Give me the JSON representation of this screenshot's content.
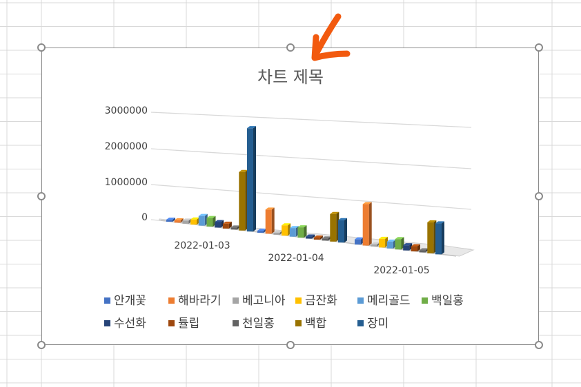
{
  "colors": {
    "gridline": "#d9d9d9",
    "frame": "#8c8c8c",
    "handle": "#8a8a8a",
    "annotation_arrow": "#f25a0f",
    "axis_text": "#404040"
  },
  "annotation": {
    "icon": "arrow-icon",
    "color": "#f25a0f"
  },
  "chart_data": {
    "type": "bar",
    "title": "차트 제목",
    "style": "3d-column",
    "categories": [
      "2022-01-03",
      "2022-01-04",
      "2022-01-05"
    ],
    "ylim": [
      0,
      3000000
    ],
    "yticks": [
      "3000000",
      "2000000",
      "1000000",
      "0"
    ],
    "grid": true,
    "legend_position": "bottom",
    "series": [
      {
        "name": "안개꽃",
        "color": "#4472c4",
        "values": [
          30000,
          50000,
          150000
        ]
      },
      {
        "name": "해바라기",
        "color": "#ed7d31",
        "values": [
          70000,
          700000,
          1200000
        ]
      },
      {
        "name": "베고니아",
        "color": "#a5a5a5",
        "values": [
          90000,
          20000,
          60000
        ]
      },
      {
        "name": "금잔화",
        "color": "#ffc000",
        "values": [
          150000,
          300000,
          250000
        ]
      },
      {
        "name": "메리골드",
        "color": "#5b9bd5",
        "values": [
          280000,
          250000,
          200000
        ]
      },
      {
        "name": "백일홍",
        "color": "#70ad47",
        "values": [
          250000,
          300000,
          300000
        ]
      },
      {
        "name": "수선화",
        "color": "#264478",
        "values": [
          160000,
          40000,
          150000
        ]
      },
      {
        "name": "튤립",
        "color": "#9e480e",
        "values": [
          140000,
          50000,
          150000
        ]
      },
      {
        "name": "천일홍",
        "color": "#636363",
        "values": [
          50000,
          30000,
          50000
        ]
      },
      {
        "name": "백합",
        "color": "#997300",
        "values": [
          1700000,
          800000,
          900000
        ]
      },
      {
        "name": "장미",
        "color": "#255e91",
        "values": [
          3000000,
          650000,
          900000
        ]
      }
    ]
  }
}
